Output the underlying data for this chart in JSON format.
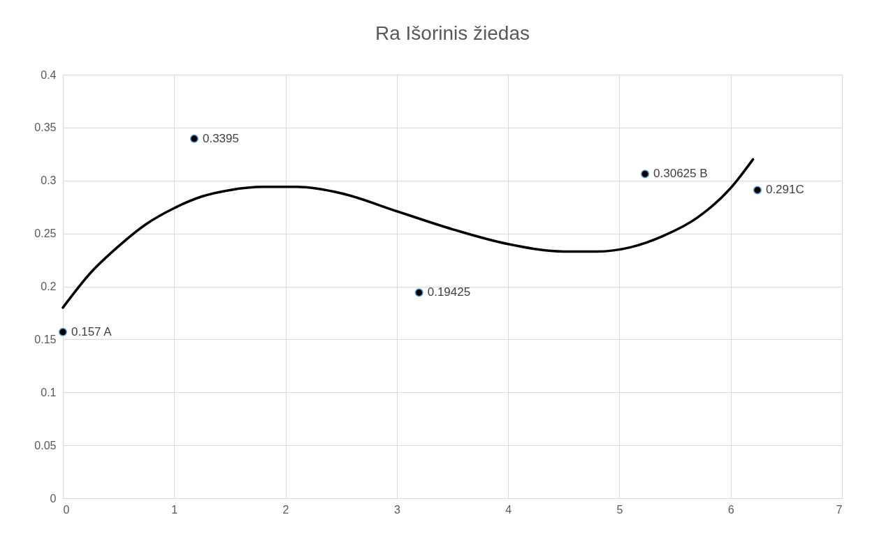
{
  "chart_data": {
    "type": "scatter",
    "title": "Ra Išorinis žiedas",
    "marker": "circle",
    "grid": true,
    "xlim": [
      0,
      7
    ],
    "xticks": [
      0,
      1,
      2,
      3,
      4,
      5,
      6,
      7
    ],
    "ylim": [
      0,
      0.4
    ],
    "yticks": [
      0,
      0.05,
      0.1,
      0.15,
      0.2,
      0.25,
      0.3,
      0.35,
      0.4
    ],
    "series": [
      {
        "color": "#000000",
        "x": [
          0,
          1.18,
          3.2,
          5.23,
          6.24
        ],
        "values": [
          0.157,
          0.3395,
          0.19425,
          0.30625,
          0.291
        ],
        "value_labels": [
          "0.157 A",
          "0.3395",
          "0.19425",
          "0.30625 B",
          "0.291C"
        ]
      },
      {
        "type": "line",
        "marker": "none",
        "color": "#000000",
        "x": [
          0,
          0.25,
          0.5,
          0.75,
          1,
          1.25,
          1.5,
          1.8,
          2.1,
          2.5,
          3,
          3.5,
          4,
          4.5,
          4.8,
          5.1,
          5.4,
          5.7,
          6,
          6.2
        ],
        "values": [
          0.18,
          0.213,
          0.238,
          0.259,
          0.274,
          0.285,
          0.291,
          0.294,
          0.294,
          0.288,
          0.271,
          0.254,
          0.24,
          0.233,
          0.233,
          0.237,
          0.248,
          0.265,
          0.293,
          0.32
        ]
      }
    ]
  }
}
